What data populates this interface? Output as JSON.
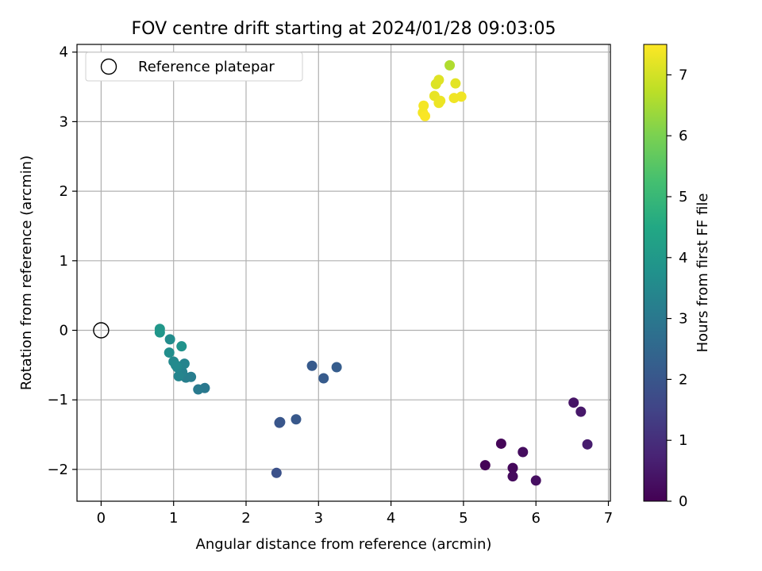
{
  "chart_data": {
    "type": "scatter",
    "title": "FOV centre drift starting at 2024/01/28 09:03:05",
    "xlabel": "Angular distance from reference (arcmin)",
    "ylabel": "Rotation from reference (arcmin)",
    "xlim": [
      -0.33,
      7.03
    ],
    "ylim": [
      -2.46,
      4.12
    ],
    "xticks": [
      0,
      1,
      2,
      3,
      4,
      5,
      6,
      7
    ],
    "yticks": [
      -2,
      -1,
      0,
      1,
      2,
      3,
      4
    ],
    "grid": true,
    "legend": {
      "placement": "top-left",
      "entries": [
        "Reference platepar"
      ]
    },
    "reference": {
      "x": 0,
      "y": 0,
      "label": "Reference platepar",
      "marker": "open-circle"
    },
    "colorbar": {
      "label": "Hours from first FF file",
      "range": [
        0,
        7.5
      ],
      "ticks": [
        0,
        1,
        2,
        3,
        4,
        5,
        6,
        7
      ],
      "colormap": "viridis"
    },
    "points": [
      {
        "x": 5.3,
        "y": -1.94,
        "c": 0.05
      },
      {
        "x": 5.52,
        "y": -1.63,
        "c": 0.1
      },
      {
        "x": 5.68,
        "y": -1.98,
        "c": 0.15
      },
      {
        "x": 5.68,
        "y": -2.1,
        "c": 0.2
      },
      {
        "x": 5.82,
        "y": -1.75,
        "c": 0.25
      },
      {
        "x": 6.0,
        "y": -2.16,
        "c": 0.3
      },
      {
        "x": 6.52,
        "y": -1.04,
        "c": 0.4
      },
      {
        "x": 6.62,
        "y": -1.17,
        "c": 0.5
      },
      {
        "x": 6.71,
        "y": -1.64,
        "c": 0.6
      },
      {
        "x": 2.42,
        "y": -2.05,
        "c": 1.85
      },
      {
        "x": 2.46,
        "y": -1.33,
        "c": 1.95
      },
      {
        "x": 2.47,
        "y": -1.32,
        "c": 2.0
      },
      {
        "x": 2.69,
        "y": -1.28,
        "c": 2.05
      },
      {
        "x": 2.91,
        "y": -0.51,
        "c": 2.1
      },
      {
        "x": 3.07,
        "y": -0.69,
        "c": 2.15
      },
      {
        "x": 3.25,
        "y": -0.53,
        "c": 2.2
      },
      {
        "x": 1.43,
        "y": -0.83,
        "c": 3.0
      },
      {
        "x": 1.34,
        "y": -0.85,
        "c": 3.05
      },
      {
        "x": 1.24,
        "y": -0.67,
        "c": 3.15
      },
      {
        "x": 1.17,
        "y": -0.68,
        "c": 3.2
      },
      {
        "x": 1.12,
        "y": -0.6,
        "c": 3.3
      },
      {
        "x": 1.15,
        "y": -0.48,
        "c": 3.35
      },
      {
        "x": 1.07,
        "y": -0.66,
        "c": 3.4
      },
      {
        "x": 1.05,
        "y": -0.53,
        "c": 3.45
      },
      {
        "x": 1.0,
        "y": -0.45,
        "c": 3.5
      },
      {
        "x": 1.03,
        "y": -0.5,
        "c": 3.55
      },
      {
        "x": 0.95,
        "y": -0.13,
        "c": 3.6
      },
      {
        "x": 0.94,
        "y": -0.32,
        "c": 3.65
      },
      {
        "x": 1.11,
        "y": -0.23,
        "c": 3.8
      },
      {
        "x": 0.81,
        "y": -0.03,
        "c": 3.9
      },
      {
        "x": 0.81,
        "y": 0.02,
        "c": 3.95
      },
      {
        "x": 4.81,
        "y": 3.81,
        "c": 6.6
      },
      {
        "x": 4.62,
        "y": 3.54,
        "c": 7.1
      },
      {
        "x": 4.66,
        "y": 3.6,
        "c": 7.15
      },
      {
        "x": 4.89,
        "y": 3.55,
        "c": 7.2
      },
      {
        "x": 4.6,
        "y": 3.37,
        "c": 7.25
      },
      {
        "x": 4.66,
        "y": 3.27,
        "c": 7.3
      },
      {
        "x": 4.68,
        "y": 3.3,
        "c": 7.3
      },
      {
        "x": 4.87,
        "y": 3.34,
        "c": 7.35
      },
      {
        "x": 4.97,
        "y": 3.36,
        "c": 7.35
      },
      {
        "x": 4.45,
        "y": 3.23,
        "c": 7.4
      },
      {
        "x": 4.44,
        "y": 3.13,
        "c": 7.4
      },
      {
        "x": 4.47,
        "y": 3.08,
        "c": 7.45
      }
    ]
  }
}
